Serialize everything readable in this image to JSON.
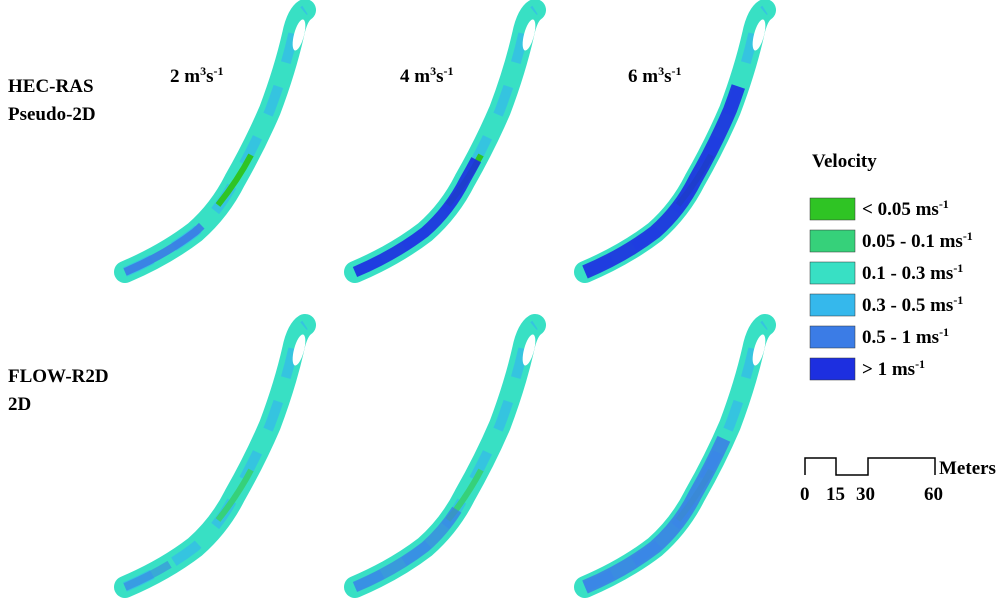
{
  "rows": [
    [
      "HEC-RAS",
      "Pseudo-2D"
    ],
    [
      "FLOW-R2D",
      "2D"
    ]
  ],
  "columns": [
    {
      "flow": "2 m",
      "sup": "3",
      "unit": "s",
      "exp": "-1"
    },
    {
      "flow": "4 m",
      "sup": "3",
      "unit": "s",
      "exp": "-1"
    },
    {
      "flow": "6 m",
      "sup": "3",
      "unit": "s",
      "exp": "-1"
    }
  ],
  "legend": {
    "title": "Velocity",
    "items": [
      {
        "label": "< 0.05 ms",
        "exp": "-1",
        "color": "#2fc424"
      },
      {
        "label": "0.05 - 0.1 ms",
        "exp": "-1",
        "color": "#36d17a"
      },
      {
        "label": "0.1 - 0.3 ms",
        "exp": "-1",
        "color": "#38e0c4"
      },
      {
        "label": "0.3 - 0.5 ms",
        "exp": "-1",
        "color": "#35b8ec"
      },
      {
        "label": "0.5 - 1 ms",
        "exp": "-1",
        "color": "#3b7ce6"
      },
      {
        "label": "> 1 ms",
        "exp": "-1",
        "color": "#1d2fe0"
      }
    ]
  },
  "scale": {
    "unit": "Meters",
    "ticks": [
      "0",
      "15",
      "30",
      "60"
    ]
  }
}
